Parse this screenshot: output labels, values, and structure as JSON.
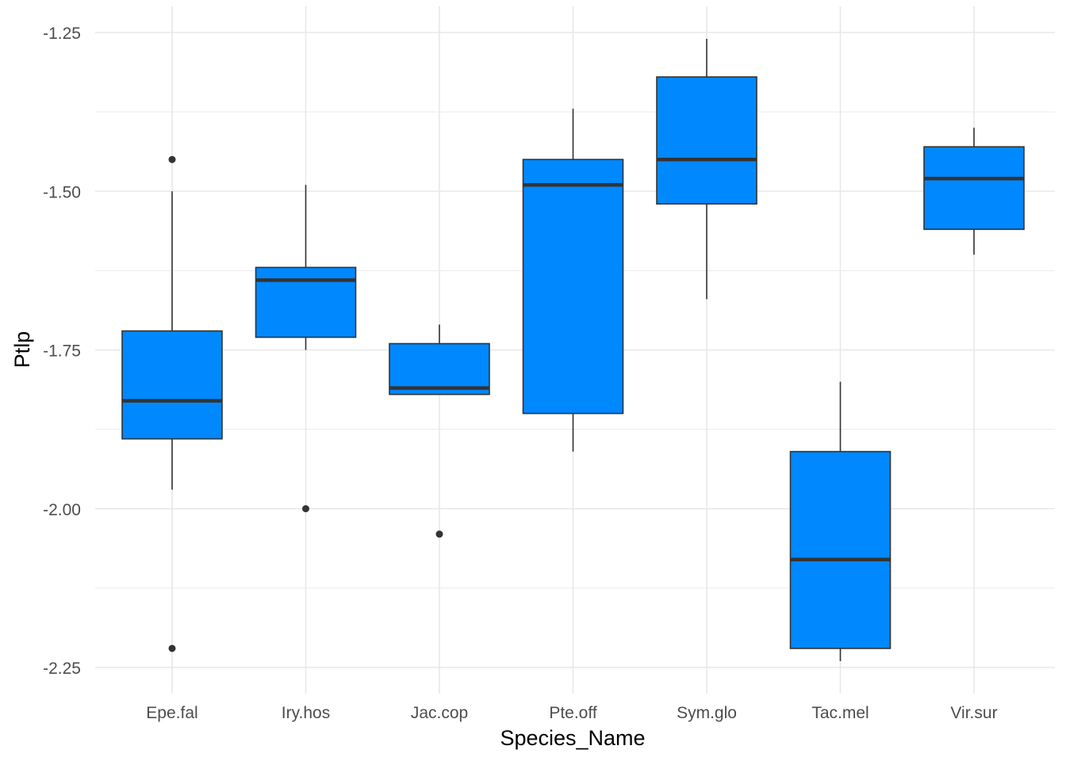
{
  "chart_data": {
    "type": "boxplot",
    "xlabel": "Species_Name",
    "ylabel": "Ptlp",
    "ylim": [
      -2.29,
      -1.22
    ],
    "y_ticks": [
      -1.25,
      -1.5,
      -1.75,
      -2.0,
      -2.25
    ],
    "y_tick_labels": [
      "-1.25",
      "-1.50",
      "-1.75",
      "-2.00",
      "-2.25"
    ],
    "grid": true,
    "fill_color": "#0088FF",
    "categories": [
      "Epe.fal",
      "Iry.hos",
      "Jac.cop",
      "Pte.off",
      "Sym.glo",
      "Tac.mel",
      "Vir.sur"
    ],
    "boxes": [
      {
        "category": "Epe.fal",
        "whisker_low": -1.97,
        "q1": -1.89,
        "median": -1.83,
        "q3": -1.72,
        "whisker_high": -1.5,
        "outliers": [
          -1.45,
          -2.22
        ]
      },
      {
        "category": "Iry.hos",
        "whisker_low": -1.75,
        "q1": -1.73,
        "median": -1.64,
        "q3": -1.62,
        "whisker_high": -1.49,
        "outliers": [
          -2.0
        ]
      },
      {
        "category": "Jac.cop",
        "whisker_low": -1.82,
        "q1": -1.82,
        "median": -1.81,
        "q3": -1.74,
        "whisker_high": -1.71,
        "outliers": [
          -2.04
        ]
      },
      {
        "category": "Pte.off",
        "whisker_low": -1.91,
        "q1": -1.85,
        "median": -1.49,
        "q3": -1.45,
        "whisker_high": -1.37,
        "outliers": []
      },
      {
        "category": "Sym.glo",
        "whisker_low": -1.67,
        "q1": -1.52,
        "median": -1.45,
        "q3": -1.32,
        "whisker_high": -1.26,
        "outliers": []
      },
      {
        "category": "Tac.mel",
        "whisker_low": -2.24,
        "q1": -2.22,
        "median": -2.08,
        "q3": -1.91,
        "whisker_high": -1.8,
        "outliers": []
      },
      {
        "category": "Vir.sur",
        "whisker_low": -1.6,
        "q1": -1.56,
        "median": -1.48,
        "q3": -1.43,
        "whisker_high": -1.4,
        "outliers": []
      }
    ]
  }
}
